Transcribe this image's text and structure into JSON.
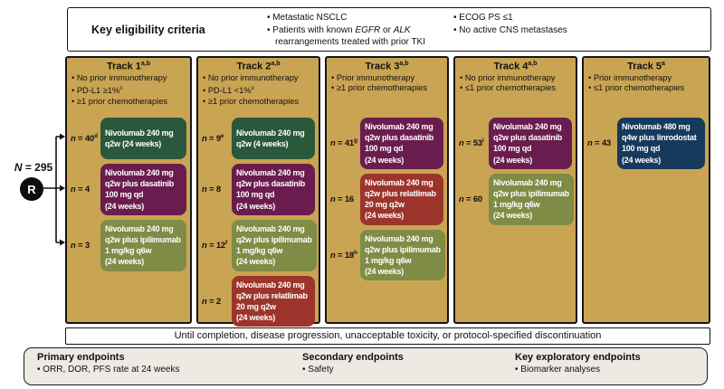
{
  "colors": {
    "track_bg": "#C9A452",
    "green": "#2B573B",
    "purple": "#6B1C4E",
    "olive": "#7F8C46",
    "red": "#9C342C",
    "navy": "#17395C",
    "endpoints_bg": "#EDEAE3",
    "line": "#111111"
  },
  "eligibility": {
    "title": "Key eligibility criteria",
    "columns": [
      [
        {
          "parts": [
            {
              "t": "Metastatic NSCLC"
            }
          ]
        },
        {
          "parts": [
            {
              "t": "Patients with known "
            },
            {
              "t": "EGFR",
              "italic": true
            },
            {
              "t": " or "
            },
            {
              "t": "ALK",
              "italic": true
            },
            {
              "t": " rearrangements treated with prior TKI"
            }
          ]
        }
      ],
      [
        {
          "parts": [
            {
              "t": "ECOG PS ≤1"
            }
          ]
        },
        {
          "parts": [
            {
              "t": "No active CNS metastases"
            }
          ]
        }
      ]
    ]
  },
  "randomization": {
    "n_symbol": "N",
    "n_rest": " = 295",
    "r_label": "R"
  },
  "tracks": [
    {
      "title": "Track 1",
      "title_sup": "a,b",
      "criteria": [
        {
          "text": "No prior immunotherapy"
        },
        {
          "text": "PD-L1 ≥1%",
          "sup": "c"
        },
        {
          "text": "≥1 prior chemotherapies"
        }
      ],
      "arms": [
        {
          "n_label": "n = 40",
          "n_sup": "d",
          "color": "green",
          "lines": [
            "Nivolumab 240 mg",
            "q2w (24 weeks)"
          ]
        },
        {
          "n_label": "n = 4",
          "color": "purple",
          "lines": [
            "Nivolumab 240 mg",
            "q2w plus dasatinib",
            "100 mg qd",
            "(24 weeks)"
          ]
        },
        {
          "n_label": "n = 3",
          "color": "olive",
          "lines": [
            "Nivolumab 240 mg",
            "q2w plus ipilimumab",
            "1 mg/kg q6w",
            "(24 weeks)"
          ]
        }
      ]
    },
    {
      "title": "Track 2",
      "title_sup": "a,b",
      "criteria": [
        {
          "text": "No prior immunotherapy"
        },
        {
          "text": "PD-L1 <1%",
          "sup": "c"
        },
        {
          "text": "≥1 prior chemotherapies"
        }
      ],
      "arms": [
        {
          "n_label": "n = 9",
          "n_sup": "e",
          "color": "green",
          "lines": [
            "Nivolumab 240 mg",
            "q2w (4 weeks)"
          ]
        },
        {
          "n_label": "n = 8",
          "color": "purple",
          "lines": [
            "Nivolumab 240 mg",
            "q2w plus dasatinib",
            "100 mg qd",
            "(24 weeks)"
          ]
        },
        {
          "n_label": "n = 12",
          "n_sup": "f",
          "color": "olive",
          "lines": [
            "Nivolumab 240 mg",
            "q2w plus ipilimumab",
            "1 mg/kg q6w",
            "(24 weeks)"
          ]
        },
        {
          "n_label": "n = 2",
          "color": "red",
          "lines": [
            "Nivolumab 240 mg",
            "q2w plus relatlimab",
            "20 mg q2w",
            "(24 weeks)"
          ]
        }
      ]
    },
    {
      "title": "Track 3",
      "title_sup": "a,b",
      "criteria": [
        {
          "text": "Prior immunotherapy"
        },
        {
          "text": "≥1 prior chemotherapies"
        }
      ],
      "arms": [
        {
          "n_label": "n = 41",
          "n_sup": "g",
          "color": "purple",
          "lines": [
            "Nivolumab 240 mg",
            "q2w plus dasatinib",
            "100 mg qd",
            "(24 weeks)"
          ]
        },
        {
          "n_label": "n = 16",
          "color": "red",
          "lines": [
            "Nivolumab 240 mg",
            "q2w plus relatlimab",
            "20 mg q2w",
            "(24 weeks)"
          ]
        },
        {
          "n_label": "n = 18",
          "n_sup": "h",
          "color": "olive",
          "lines": [
            "Nivolumab 240 mg",
            "q2w plus ipilimumab",
            "1 mg/kg q6w",
            "(24 weeks)"
          ]
        }
      ]
    },
    {
      "title": "Track 4",
      "title_sup": "a,b",
      "criteria": [
        {
          "text": "No prior immunotherapy"
        },
        {
          "text": "≤1 prior chemotherapies"
        }
      ],
      "arms": [
        {
          "n_label": "n = 53",
          "n_sup": "i",
          "color": "purple",
          "lines": [
            "Nivolumab 240 mg",
            "q2w plus dasatinib",
            "100 mg qd",
            "(24 weeks)"
          ]
        },
        {
          "n_label": "n = 60",
          "color": "olive",
          "lines": [
            "Nivolumab 240 mg",
            "q2w plus ipilimumab",
            "1 mg/kg q6w",
            "(24 weeks)"
          ]
        }
      ]
    },
    {
      "title": "Track 5",
      "title_sup": "a",
      "criteria": [
        {
          "text": "Prior immunotherapy"
        },
        {
          "text": "≤1 prior chemotherapies"
        }
      ],
      "arms": [
        {
          "n_label": "n = 43",
          "color": "navy",
          "lines": [
            "Nivolumab 480 mg",
            "q4w plus linrodostat",
            "100 mg qd",
            "(24 weeks)"
          ]
        }
      ]
    }
  ],
  "continuation": "Until completion, disease progression, unacceptable toxicity, or protocol-specified discontinuation",
  "endpoints": [
    {
      "title": "Primary endpoints",
      "items": [
        "ORR, DOR, PFS rate at 24 weeks"
      ]
    },
    {
      "title": "Secondary endpoints",
      "items": [
        "Safety"
      ]
    },
    {
      "title": "Key exploratory endpoints",
      "items": [
        "Biomarker analyses"
      ]
    }
  ]
}
